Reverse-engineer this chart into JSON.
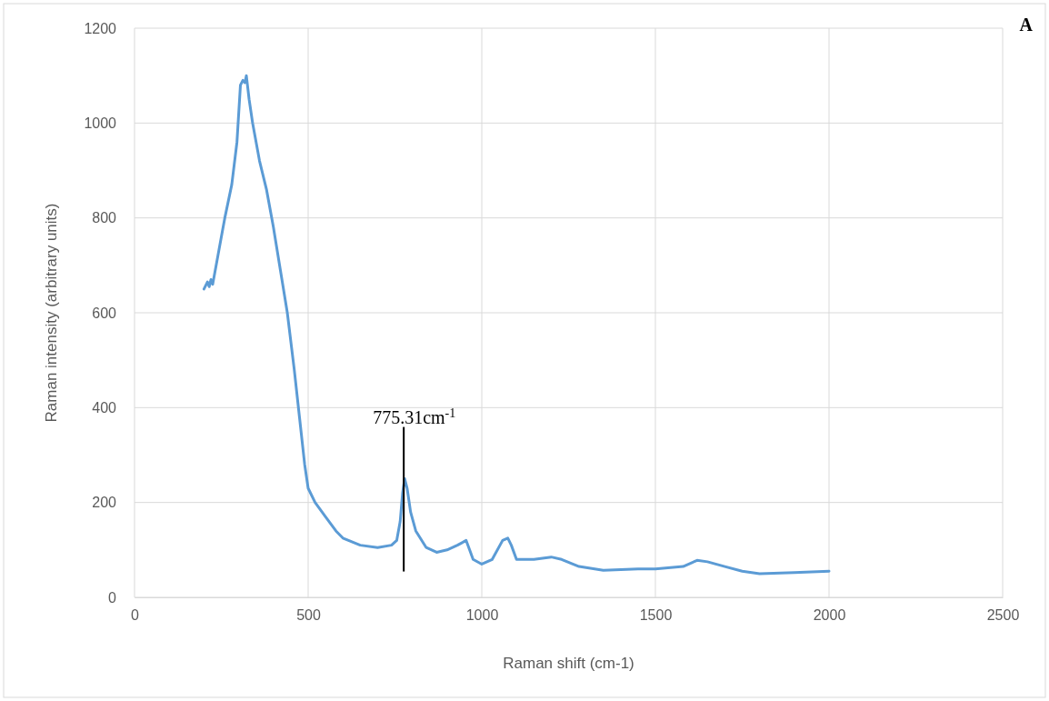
{
  "chart_data": {
    "type": "line",
    "xlabel": "Raman shift (cm-1)",
    "ylabel": "Raman intensity (arbitrary units)",
    "xlim": [
      0,
      2500
    ],
    "xticks": [
      0,
      500,
      1000,
      1500,
      2000,
      2500
    ],
    "ylim": [
      0,
      1200
    ],
    "yticks": [
      0,
      200,
      400,
      600,
      800,
      1000,
      1200
    ],
    "grid": true,
    "series": [
      {
        "color": "#5b9bd5",
        "x": [
          200,
          210,
          215,
          220,
          225,
          240,
          260,
          280,
          295,
          305,
          312,
          318,
          322,
          330,
          340,
          360,
          380,
          400,
          420,
          440,
          460,
          475,
          490,
          500,
          520,
          550,
          580,
          600,
          650,
          700,
          740,
          755,
          765,
          772,
          778,
          785,
          795,
          810,
          840,
          870,
          900,
          930,
          955,
          965,
          975,
          1000,
          1030,
          1060,
          1075,
          1085,
          1100,
          1150,
          1200,
          1230,
          1280,
          1350,
          1450,
          1500,
          1580,
          1620,
          1650,
          1700,
          1750,
          1800,
          1900,
          2000
        ],
        "values": [
          650,
          665,
          655,
          670,
          660,
          720,
          800,
          870,
          960,
          1080,
          1090,
          1085,
          1100,
          1050,
          1000,
          920,
          860,
          780,
          690,
          600,
          480,
          380,
          280,
          230,
          200,
          170,
          140,
          125,
          110,
          105,
          110,
          120,
          160,
          220,
          250,
          230,
          180,
          140,
          105,
          95,
          100,
          110,
          120,
          100,
          80,
          70,
          80,
          120,
          125,
          110,
          80,
          80,
          85,
          80,
          65,
          57,
          60,
          60,
          65,
          78,
          75,
          65,
          55,
          50,
          52,
          55
        ]
      }
    ],
    "annotations": [
      {
        "text": "775.31cm$^{-1}$",
        "x": 775.31,
        "y": 250
      },
      "A"
    ]
  }
}
